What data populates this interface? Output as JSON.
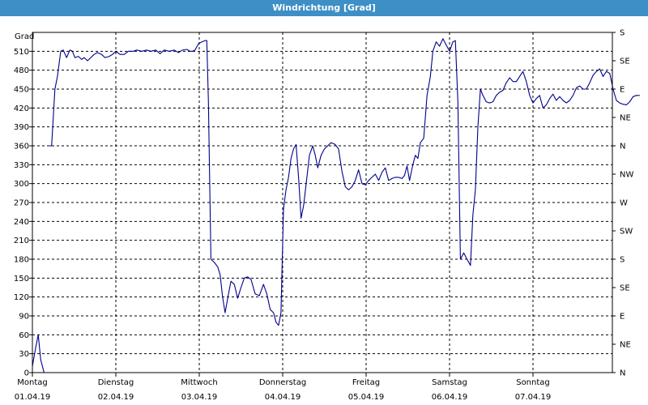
{
  "window": {
    "title": "Windrichtung [Grad]"
  },
  "chart_data": {
    "type": "line",
    "title": "Windrichtung [Grad]",
    "ylabel": "Grad",
    "ylim": [
      0,
      540
    ],
    "xlim": [
      0,
      7.2
    ],
    "grid": true,
    "y_ticks": [
      0,
      30,
      60,
      90,
      120,
      150,
      180,
      210,
      240,
      270,
      300,
      330,
      360,
      390,
      420,
      450,
      480,
      510
    ],
    "y2_ticks": [
      {
        "value": 0,
        "label": "N"
      },
      {
        "value": 45,
        "label": "NE"
      },
      {
        "value": 90,
        "label": "E"
      },
      {
        "value": 135,
        "label": "SE"
      },
      {
        "value": 180,
        "label": "S"
      },
      {
        "value": 225,
        "label": "SW"
      },
      {
        "value": 270,
        "label": "W"
      },
      {
        "value": 315,
        "label": "NW"
      },
      {
        "value": 360,
        "label": "N"
      },
      {
        "value": 405,
        "label": "NE"
      },
      {
        "value": 450,
        "label": "E"
      },
      {
        "value": 495,
        "label": "SE"
      },
      {
        "value": 540,
        "label": "S"
      }
    ],
    "x_ticks": [
      {
        "value": 0,
        "day": "Montag",
        "date": "01.04.19"
      },
      {
        "value": 1,
        "day": "Dienstag",
        "date": "02.04.19"
      },
      {
        "value": 2,
        "day": "Mittwoch",
        "date": "03.04.19"
      },
      {
        "value": 3,
        "day": "Donnerstag",
        "date": "04.04.19"
      },
      {
        "value": 4,
        "day": "Freitag",
        "date": "05.04.19"
      },
      {
        "value": 5,
        "day": "Samstag",
        "date": "06.04.19"
      },
      {
        "value": 6,
        "day": "Sonntag",
        "date": "07.04.19"
      }
    ],
    "series": [
      {
        "color": "#00008b",
        "segments": [
          [
            [
              0.0,
              10
            ],
            [
              0.04,
              40
            ],
            [
              0.07,
              60
            ],
            [
              0.1,
              20
            ],
            [
              0.14,
              0
            ]
          ],
          [
            [
              0.19,
              360
            ],
            [
              0.23,
              360
            ],
            [
              0.27,
              450
            ],
            [
              0.3,
              470
            ],
            [
              0.34,
              510
            ],
            [
              0.37,
              512
            ],
            [
              0.41,
              500
            ],
            [
              0.45,
              512
            ],
            [
              0.48,
              510
            ],
            [
              0.51,
              500
            ],
            [
              0.55,
              502
            ],
            [
              0.59,
              497
            ],
            [
              0.62,
              500
            ],
            [
              0.66,
              495
            ],
            [
              0.7,
              500
            ],
            [
              0.74,
              505
            ],
            [
              0.78,
              508
            ],
            [
              0.83,
              505
            ],
            [
              0.87,
              500
            ],
            [
              0.92,
              502
            ],
            [
              0.96,
              505
            ],
            [
              1.0,
              510
            ],
            [
              1.05,
              505
            ],
            [
              1.1,
              505
            ],
            [
              1.15,
              510
            ],
            [
              1.21,
              510
            ],
            [
              1.25,
              512
            ],
            [
              1.31,
              510
            ],
            [
              1.37,
              512
            ],
            [
              1.42,
              510
            ],
            [
              1.48,
              512
            ],
            [
              1.53,
              506
            ],
            [
              1.58,
              512
            ],
            [
              1.64,
              510
            ],
            [
              1.7,
              512
            ],
            [
              1.75,
              508
            ],
            [
              1.8,
              512
            ],
            [
              1.85,
              513
            ],
            [
              1.89,
              510
            ],
            [
              1.92,
              510
            ],
            [
              1.95,
              512
            ],
            [
              1.99,
              522
            ],
            [
              2.03,
              525
            ],
            [
              2.07,
              527
            ],
            [
              2.09,
              527
            ],
            [
              2.11,
              430
            ],
            [
              2.14,
              180
            ],
            [
              2.18,
              175
            ],
            [
              2.22,
              168
            ],
            [
              2.25,
              155
            ],
            [
              2.28,
              120
            ],
            [
              2.31,
              95
            ],
            [
              2.35,
              125
            ],
            [
              2.38,
              145
            ],
            [
              2.42,
              140
            ],
            [
              2.46,
              118
            ],
            [
              2.5,
              135
            ],
            [
              2.54,
              150
            ],
            [
              2.58,
              152
            ],
            [
              2.62,
              148
            ],
            [
              2.67,
              125
            ],
            [
              2.72,
              122
            ],
            [
              2.77,
              140
            ],
            [
              2.81,
              125
            ],
            [
              2.85,
              100
            ],
            [
              2.89,
              95
            ],
            [
              2.92,
              80
            ],
            [
              2.95,
              75
            ],
            [
              2.98,
              95
            ],
            [
              3.01,
              260
            ],
            [
              3.04,
              290
            ],
            [
              3.07,
              310
            ],
            [
              3.1,
              340
            ],
            [
              3.13,
              355
            ],
            [
              3.16,
              362
            ],
            [
              3.19,
              310
            ],
            [
              3.22,
              245
            ],
            [
              3.25,
              265
            ],
            [
              3.29,
              310
            ],
            [
              3.32,
              345
            ],
            [
              3.36,
              360
            ],
            [
              3.39,
              345
            ],
            [
              3.42,
              325
            ],
            [
              3.46,
              345
            ],
            [
              3.5,
              355
            ],
            [
              3.54,
              360
            ],
            [
              3.58,
              365
            ],
            [
              3.63,
              362
            ],
            [
              3.67,
              355
            ],
            [
              3.71,
              320
            ],
            [
              3.75,
              295
            ],
            [
              3.79,
              290
            ],
            [
              3.83,
              295
            ],
            [
              3.87,
              305
            ],
            [
              3.91,
              322
            ],
            [
              3.95,
              300
            ],
            [
              3.99,
              298
            ],
            [
              4.03,
              305
            ],
            [
              4.07,
              310
            ],
            [
              4.11,
              315
            ],
            [
              4.15,
              305
            ],
            [
              4.19,
              318
            ],
            [
              4.23,
              325
            ],
            [
              4.27,
              305
            ],
            [
              4.31,
              308
            ],
            [
              4.35,
              310
            ],
            [
              4.39,
              310
            ],
            [
              4.43,
              308
            ],
            [
              4.46,
              313
            ],
            [
              4.49,
              328
            ],
            [
              4.52,
              305
            ],
            [
              4.56,
              330
            ],
            [
              4.59,
              345
            ],
            [
              4.62,
              340
            ],
            [
              4.65,
              365
            ],
            [
              4.69,
              372
            ],
            [
              4.73,
              440
            ],
            [
              4.77,
              470
            ],
            [
              4.8,
              510
            ],
            [
              4.84,
              525
            ],
            [
              4.88,
              518
            ],
            [
              4.92,
              530
            ],
            [
              4.96,
              520
            ],
            [
              5.0,
              510
            ],
            [
              5.04,
              525
            ],
            [
              5.07,
              527
            ],
            [
              5.1,
              430
            ],
            [
              5.13,
              180
            ],
            [
              5.17,
              190
            ],
            [
              5.21,
              180
            ],
            [
              5.25,
              170
            ],
            [
              5.28,
              250
            ],
            [
              5.31,
              290
            ],
            [
              5.34,
              390
            ],
            [
              5.37,
              450
            ],
            [
              5.4,
              440
            ],
            [
              5.44,
              430
            ],
            [
              5.48,
              428
            ],
            [
              5.52,
              430
            ],
            [
              5.56,
              440
            ],
            [
              5.6,
              445
            ],
            [
              5.64,
              448
            ],
            [
              5.68,
              460
            ],
            [
              5.72,
              468
            ],
            [
              5.76,
              462
            ],
            [
              5.8,
              462
            ],
            [
              5.84,
              470
            ],
            [
              5.88,
              478
            ],
            [
              5.92,
              462
            ],
            [
              5.96,
              440
            ],
            [
              6.0,
              428
            ],
            [
              6.04,
              435
            ],
            [
              6.08,
              440
            ],
            [
              6.12,
              420
            ],
            [
              6.16,
              425
            ],
            [
              6.2,
              435
            ],
            [
              6.24,
              442
            ],
            [
              6.28,
              432
            ],
            [
              6.32,
              438
            ],
            [
              6.36,
              432
            ],
            [
              6.4,
              428
            ],
            [
              6.44,
              432
            ],
            [
              6.48,
              440
            ],
            [
              6.52,
              452
            ],
            [
              6.56,
              455
            ],
            [
              6.6,
              450
            ],
            [
              6.64,
              450
            ],
            [
              6.68,
              460
            ],
            [
              6.72,
              472
            ],
            [
              6.76,
              478
            ],
            [
              6.8,
              482
            ],
            [
              6.84,
              470
            ],
            [
              6.88,
              478
            ],
            [
              6.92,
              475
            ],
            [
              6.96,
              450
            ],
            [
              7.0,
              432
            ],
            [
              7.04,
              428
            ],
            [
              7.08,
              426
            ],
            [
              7.12,
              425
            ],
            [
              7.16,
              430
            ],
            [
              7.2,
              438
            ],
            [
              7.24,
              440
            ],
            [
              7.28,
              440
            ]
          ]
        ]
      }
    ]
  }
}
